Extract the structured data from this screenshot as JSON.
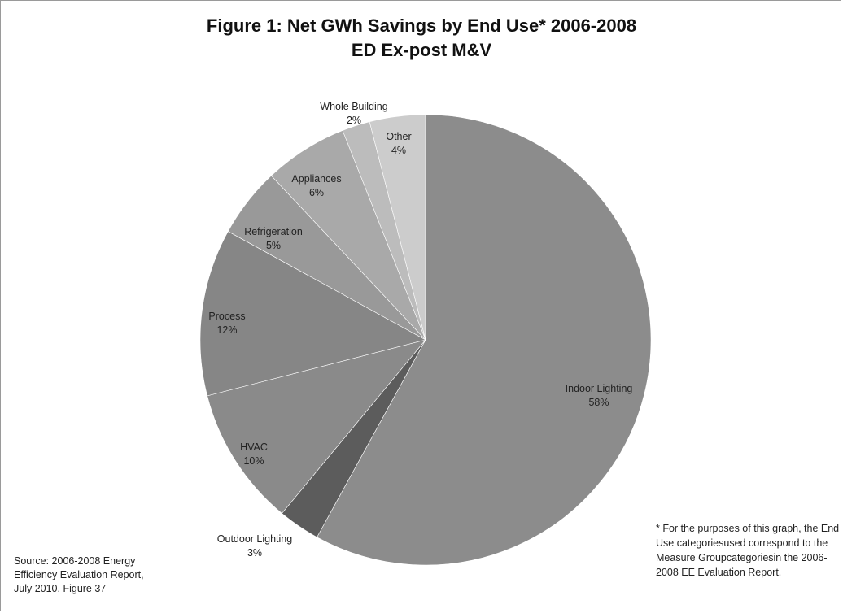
{
  "chart_data": {
    "type": "pie",
    "title": "Figure 1: Net GWh Savings by End Use* 2006-2008",
    "subtitle": "ED Ex-post M&V",
    "slices": [
      {
        "label": "Indoor Lighting",
        "pct_label": "58%",
        "value": 58,
        "color": "#8c8c8c"
      },
      {
        "label": "Outdoor Lighting",
        "pct_label": "3%",
        "value": 3,
        "color": "#5c5c5c"
      },
      {
        "label": "HVAC",
        "pct_label": "10%",
        "value": 10,
        "color": "#8a8a8a"
      },
      {
        "label": "Process",
        "pct_label": "12%",
        "value": 12,
        "color": "#868686"
      },
      {
        "label": "Refrigeration",
        "pct_label": "5%",
        "value": 5,
        "color": "#999999"
      },
      {
        "label": "Appliances",
        "pct_label": "6%",
        "value": 6,
        "color": "#a9a9a9"
      },
      {
        "label": "Whole Building",
        "pct_label": "2%",
        "value": 2,
        "color": "#bcbcbc"
      },
      {
        "label": "Other",
        "pct_label": "4%",
        "value": 4,
        "color": "#cccccc"
      }
    ],
    "legend": "none",
    "start": "top",
    "direction": "clockwise"
  },
  "source_note": "Source: 2006-2008 Energy Efficiency Evaluation Report, July 2010, Figure 37",
  "footnote": "* For the purposes of this graph, the End Use categoriesused correspond to the Measure Groupcategoriesin the 2006-2008 EE Evaluation Report."
}
